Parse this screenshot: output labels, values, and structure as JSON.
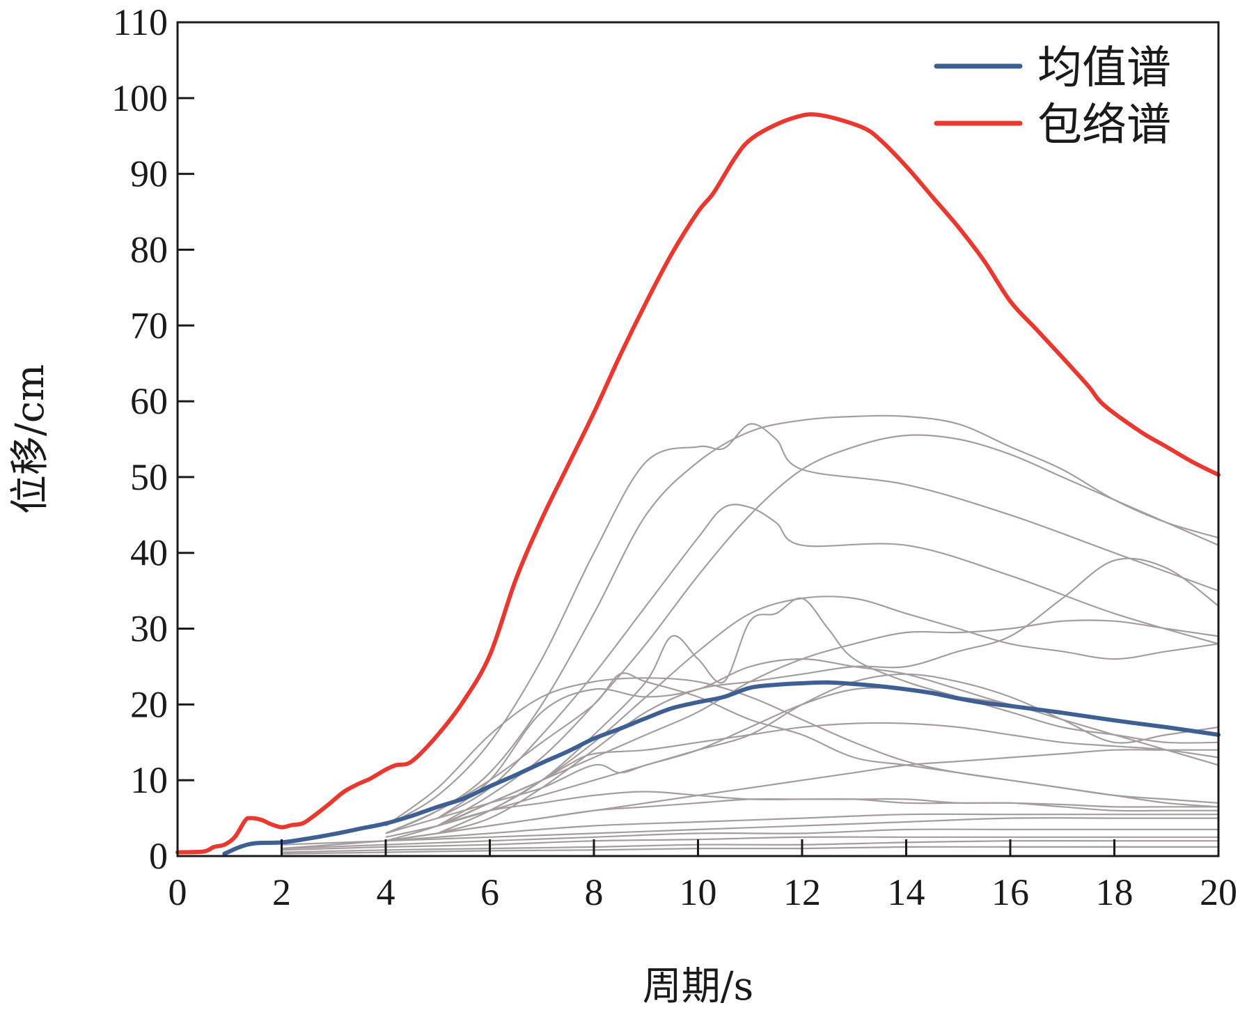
{
  "chart_data": {
    "type": "line",
    "title": "",
    "xlabel": "周期/s",
    "ylabel": "位移/cm",
    "xlim": [
      0,
      20
    ],
    "ylim": [
      0,
      110
    ],
    "xticks": [
      0,
      2,
      4,
      6,
      8,
      10,
      12,
      14,
      16,
      18,
      20
    ],
    "yticks": [
      0,
      10,
      20,
      30,
      40,
      50,
      60,
      70,
      80,
      90,
      100,
      110
    ],
    "grid": false,
    "legend_position": "top-right",
    "colors": {
      "mean": "#3d5f94",
      "envelope": "#e8382f",
      "records": "#a59d9d",
      "axis": "#1a1a1a"
    },
    "series": [
      {
        "name": "均值谱",
        "role": "mean",
        "x": [
          0.9,
          1.2,
          1.5,
          2.0,
          2.5,
          3.0,
          3.5,
          4.0,
          4.5,
          5.0,
          5.5,
          6.0,
          6.5,
          7.0,
          7.5,
          8.0,
          8.5,
          9.0,
          9.5,
          10.0,
          10.5,
          11.0,
          11.5,
          12.0,
          12.5,
          13.0,
          13.5,
          14.0,
          14.5,
          15.0,
          15.5,
          16.0,
          17.0,
          18.0,
          19.0,
          20.0
        ],
        "y": [
          0.3,
          1.2,
          1.7,
          1.8,
          2.3,
          2.9,
          3.6,
          4.3,
          5.3,
          6.5,
          7.6,
          9.2,
          10.7,
          12.3,
          13.8,
          15.5,
          16.8,
          18.2,
          19.5,
          20.3,
          21.0,
          22.2,
          22.6,
          22.8,
          22.9,
          22.7,
          22.4,
          22.0,
          21.5,
          20.8,
          20.2,
          19.8,
          18.9,
          17.9,
          17.0,
          16.0
        ]
      },
      {
        "name": "包络谱",
        "role": "envelope",
        "x": [
          0,
          0.5,
          0.7,
          0.9,
          1.1,
          1.3,
          1.4,
          1.6,
          1.8,
          2.0,
          2.2,
          2.4,
          2.6,
          2.9,
          3.2,
          3.5,
          3.7,
          4.0,
          4.2,
          4.5,
          5.0,
          5.5,
          6.0,
          6.5,
          7.0,
          7.5,
          8.0,
          8.5,
          9.0,
          9.5,
          10.0,
          10.3,
          10.7,
          11.0,
          11.5,
          12.0,
          12.3,
          12.7,
          13.2,
          13.5,
          14.0,
          14.5,
          15.0,
          15.5,
          16.0,
          16.5,
          17.0,
          17.5,
          17.8,
          18.5,
          19.0,
          19.5,
          20.0
        ],
        "y": [
          0.5,
          0.6,
          1.2,
          1.5,
          2.5,
          4.7,
          5.0,
          4.8,
          4.2,
          3.8,
          4.1,
          4.3,
          5.2,
          6.8,
          8.5,
          9.6,
          10.2,
          11.4,
          12.0,
          12.5,
          16.0,
          20.5,
          26.5,
          36.5,
          44.5,
          51.5,
          58.5,
          66.0,
          73.0,
          79.5,
          85.0,
          87.5,
          92.0,
          94.5,
          96.5,
          97.7,
          97.8,
          97.2,
          96.0,
          94.5,
          91.0,
          87.0,
          83.0,
          78.5,
          73.2,
          69.5,
          65.8,
          62.0,
          59.5,
          56.0,
          54.0,
          52.0,
          50.3
        ]
      }
    ],
    "background_series": [
      {
        "x": [
          4,
          5,
          6,
          7,
          8,
          9,
          10,
          11,
          12,
          13,
          14,
          15,
          16,
          17,
          18,
          19,
          20
        ],
        "y": [
          3,
          6,
          11,
          20,
          32,
          45,
          52,
          56,
          57.5,
          58,
          58,
          57,
          54,
          51,
          47,
          44,
          42
        ]
      },
      {
        "x": [
          4,
          5,
          6,
          7,
          8,
          9,
          10,
          10.5,
          11,
          11.5,
          12,
          14,
          16,
          18,
          20
        ],
        "y": [
          4,
          8,
          15,
          26,
          40,
          52,
          54,
          53.8,
          57,
          55,
          51,
          49,
          45,
          40,
          35
        ]
      },
      {
        "x": [
          5,
          6,
          7,
          8,
          9,
          10,
          11,
          12,
          13,
          14,
          15,
          16,
          17,
          18,
          19,
          20
        ],
        "y": [
          4,
          8,
          13,
          20,
          28,
          37,
          45,
          51,
          54,
          55.5,
          55,
          53,
          50,
          47,
          44,
          41
        ]
      },
      {
        "x": [
          5,
          6,
          7,
          8,
          9,
          10,
          10.5,
          11,
          11.5,
          12,
          14,
          16,
          18,
          20
        ],
        "y": [
          5,
          9,
          16,
          24,
          33,
          42,
          46,
          46,
          44,
          41,
          41,
          37,
          32,
          28
        ]
      },
      {
        "x": [
          5,
          6,
          7,
          8,
          9,
          10,
          11,
          12,
          13,
          14,
          15,
          16,
          17,
          18,
          19,
          20
        ],
        "y": [
          3,
          6,
          10,
          15,
          21,
          27,
          32,
          34,
          34,
          32,
          30,
          28,
          27,
          26,
          27,
          28
        ]
      },
      {
        "x": [
          5,
          6,
          7,
          8,
          9,
          9.5,
          10,
          10.5,
          11,
          11.5,
          12,
          12.5,
          13,
          14,
          15,
          16,
          17,
          18,
          19,
          20
        ],
        "y": [
          3,
          6,
          10,
          16,
          23,
          29,
          26,
          23,
          31,
          32,
          34,
          30,
          26,
          23,
          21,
          19,
          17,
          16,
          15,
          15
        ]
      },
      {
        "x": [
          5,
          6,
          7,
          8,
          9,
          10,
          11,
          12,
          13,
          14,
          15,
          16,
          17,
          18,
          19,
          20
        ],
        "y": [
          3,
          5,
          9,
          14,
          19,
          22,
          23,
          24,
          25,
          25,
          27,
          29,
          34,
          39,
          38,
          33
        ]
      },
      {
        "x": [
          4,
          5,
          6,
          7,
          8,
          9,
          10,
          11,
          12,
          13,
          14,
          15,
          16,
          17,
          18,
          19,
          20
        ],
        "y": [
          2,
          4,
          7,
          10,
          13,
          16,
          19,
          23,
          26,
          28,
          29.5,
          29.5,
          30,
          31,
          31,
          30,
          29
        ]
      },
      {
        "x": [
          4,
          5,
          6,
          7,
          8,
          9,
          10,
          11,
          12,
          13,
          14,
          15,
          16,
          17,
          18,
          19,
          20
        ],
        "y": [
          4,
          9,
          16,
          21,
          23,
          23.5,
          23,
          21,
          18,
          15,
          12.5,
          11,
          10,
          9,
          8,
          7.5,
          7
        ]
      },
      {
        "x": [
          4,
          5,
          6,
          7,
          8,
          8.5,
          9,
          10,
          11,
          12,
          13,
          14,
          15,
          16,
          17,
          18,
          19,
          20
        ],
        "y": [
          3,
          6,
          10,
          15,
          20,
          24,
          23,
          21,
          18,
          16,
          13,
          12,
          11,
          10,
          9,
          8,
          7,
          6.5
        ]
      },
      {
        "x": [
          5,
          6,
          7,
          7.5,
          8,
          9,
          10,
          11,
          12,
          13,
          14,
          15,
          16,
          17,
          18,
          19,
          20
        ],
        "y": [
          4,
          7,
          10,
          12,
          13.5,
          14,
          15,
          16,
          17,
          17.5,
          17.5,
          17,
          16,
          15,
          14.5,
          14,
          13
        ]
      },
      {
        "x": [
          4,
          5,
          6,
          7,
          8,
          8.5,
          9,
          10,
          11,
          12,
          13,
          14,
          15,
          16,
          17,
          18,
          19,
          20
        ],
        "y": [
          3,
          5,
          7,
          9,
          12,
          11,
          12,
          14,
          16,
          20,
          23,
          24,
          23,
          21,
          18,
          15,
          16,
          17
        ]
      },
      {
        "x": [
          5,
          6,
          7,
          8,
          9,
          10,
          11,
          12,
          13,
          14,
          15,
          16,
          17,
          18,
          19,
          20
        ],
        "y": [
          4,
          6,
          7,
          8,
          8.5,
          8,
          7.5,
          7.5,
          7.5,
          7,
          7,
          7,
          6.8,
          6.5,
          6.5,
          6.5
        ]
      },
      {
        "x": [
          4,
          5,
          6,
          7,
          8,
          9,
          10,
          11,
          12,
          13,
          14,
          15,
          16,
          17,
          18,
          19,
          20
        ],
        "y": [
          2,
          3,
          4,
          5,
          6,
          6.5,
          7,
          7.5,
          7.5,
          7.5,
          7.5,
          7,
          7,
          6.5,
          6,
          6,
          6
        ]
      },
      {
        "x": [
          2,
          4,
          6,
          8,
          10,
          12,
          14,
          16,
          18,
          20
        ],
        "y": [
          1,
          2,
          3,
          4,
          4.5,
          5,
          5.5,
          5.5,
          5.5,
          5.5
        ]
      },
      {
        "x": [
          2,
          4,
          6,
          8,
          10,
          12,
          14,
          16,
          18,
          20
        ],
        "y": [
          1.5,
          2,
          2.5,
          3,
          3.5,
          4,
          4.5,
          5,
          5,
          5
        ]
      },
      {
        "x": [
          2,
          4,
          6,
          8,
          10,
          12,
          14,
          16,
          18,
          20
        ],
        "y": [
          1,
          1.5,
          2,
          2.5,
          3,
          3,
          3.5,
          3.5,
          3.5,
          3.5
        ]
      },
      {
        "x": [
          2,
          4,
          6,
          8,
          10,
          12,
          14,
          16,
          18,
          20
        ],
        "y": [
          0.8,
          1.2,
          1.5,
          2,
          2.2,
          2.5,
          2.5,
          2.5,
          2.5,
          2.5
        ]
      },
      {
        "x": [
          2,
          4,
          6,
          8,
          10,
          12,
          14,
          16,
          18,
          20
        ],
        "y": [
          0.5,
          0.8,
          1,
          1.2,
          1.5,
          1.5,
          1.8,
          2,
          2,
          2
        ]
      },
      {
        "x": [
          2,
          4,
          6,
          8,
          10,
          12,
          14,
          16,
          18,
          20
        ],
        "y": [
          0.3,
          0.5,
          0.7,
          0.8,
          1,
          1,
          1.2,
          1.2,
          1.2,
          1.2
        ]
      },
      {
        "x": [
          4,
          5,
          6,
          7,
          8,
          9,
          10,
          11,
          12,
          13,
          14,
          15,
          16,
          17,
          18,
          19,
          20
        ],
        "y": [
          2,
          3,
          4,
          5,
          6,
          7,
          8,
          9,
          10,
          11,
          12,
          12.5,
          13,
          13.5,
          14,
          14,
          14
        ]
      },
      {
        "x": [
          4,
          5,
          6,
          7,
          8,
          9,
          10,
          11,
          12,
          13,
          14,
          15,
          16,
          17,
          18,
          19,
          20
        ],
        "y": [
          2.5,
          4,
          6,
          8,
          10,
          12,
          14,
          17,
          20,
          22,
          22,
          21,
          20,
          18,
          16,
          14,
          12
        ]
      },
      {
        "x": [
          5,
          6,
          7,
          8,
          9,
          10,
          11,
          12,
          13,
          14,
          15,
          16,
          17,
          18,
          19,
          20
        ],
        "y": [
          5,
          10,
          19,
          22,
          21,
          22,
          25,
          26,
          25,
          24,
          22,
          20,
          19,
          18,
          17,
          16
        ]
      }
    ]
  }
}
